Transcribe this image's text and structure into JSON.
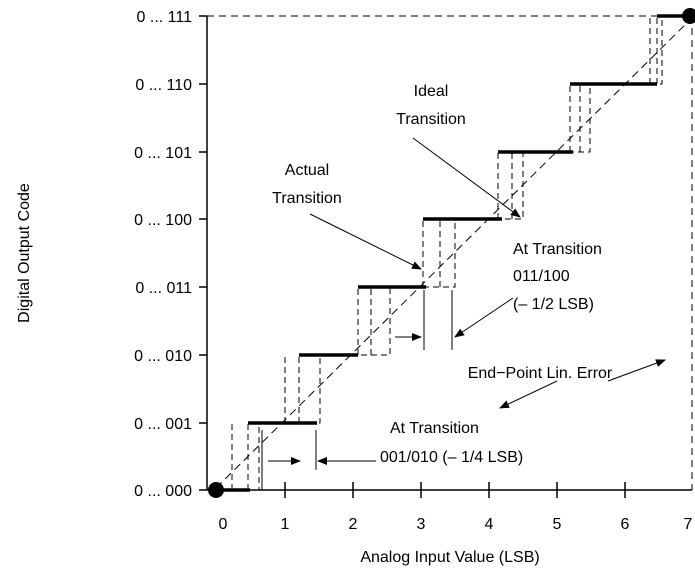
{
  "diagram": {
    "y_axis_label": "Digital Output Code",
    "x_axis_label": "Analog Input Value (LSB)",
    "y_tick_labels": [
      "0 ... 000",
      "0 ... 001",
      "0 ... 010",
      "0 ... 011",
      "0 ... 100",
      "0 ... 101",
      "0 ... 110",
      "0 ... 111"
    ],
    "x_tick_labels": [
      "0",
      "1",
      "2",
      "3",
      "4",
      "5",
      "6",
      "7"
    ],
    "annotations": {
      "ideal_line1": "Ideal",
      "ideal_line2": "Transition",
      "actual_line1": "Actual",
      "actual_line2": "Transition",
      "at_transition_upper_line1": "At Transition",
      "at_transition_upper_line2": "011/100",
      "at_transition_upper_line3": "(– 1/2 LSB)",
      "endpoint_error": "End−Point Lin. Error",
      "at_transition_lower_line1": "At Transition",
      "at_transition_lower_line2": "001/010 (– 1/4 LSB)"
    }
  }
}
